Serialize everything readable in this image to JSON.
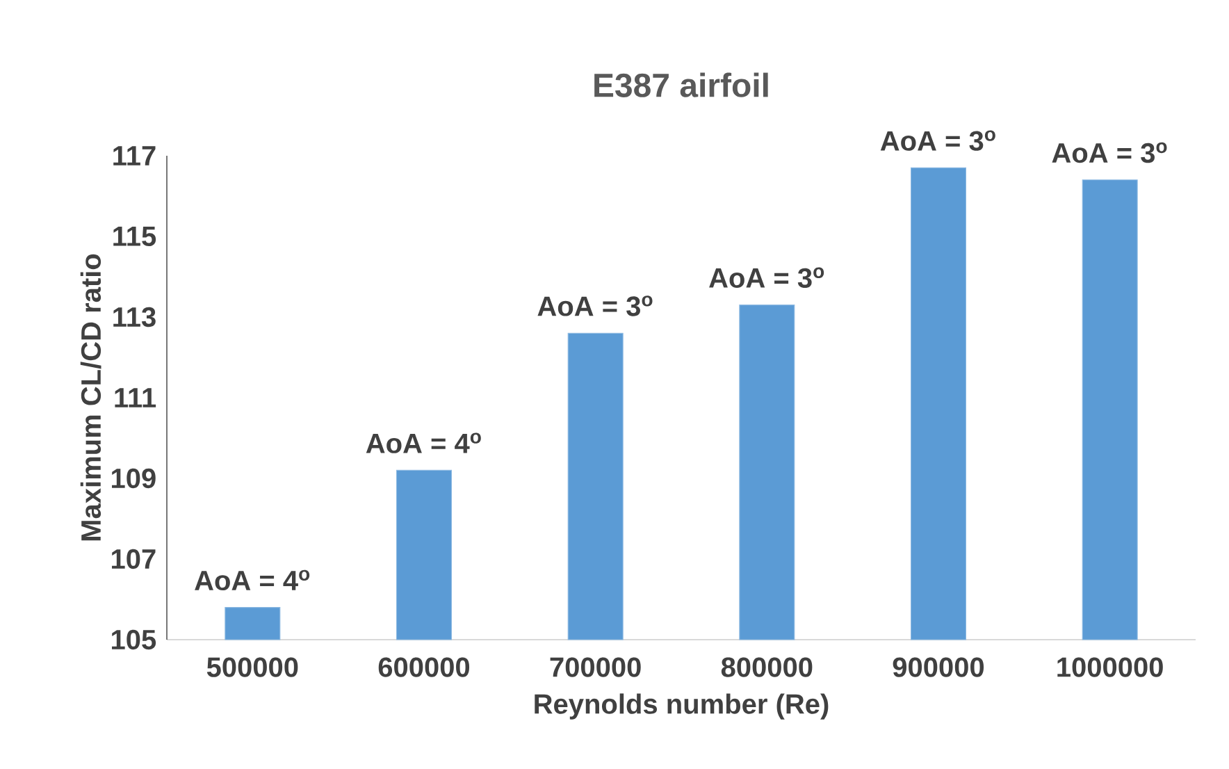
{
  "chart_data": {
    "type": "bar",
    "title": "E387 airfoil",
    "xlabel": "Reynolds number (Re)",
    "ylabel": "Maximum CL/CD ratio",
    "categories": [
      "500000",
      "600000",
      "700000",
      "800000",
      "900000",
      "1000000"
    ],
    "values": [
      105.8,
      109.2,
      112.6,
      113.3,
      116.7,
      116.4
    ],
    "color": "#5b9bd5",
    "ylim": [
      105,
      117
    ],
    "yticks": [
      105,
      107,
      109,
      111,
      113,
      115,
      117
    ],
    "annotations": [
      {
        "text": "AoA = 4$^{o}$",
        "x": "500000",
        "y": 105.8
      },
      {
        "text": "AoA = 4$^{o}$",
        "x": "600000",
        "y": 109.2
      },
      {
        "text": "AoA = 3$^{o}$",
        "x": "700000",
        "y": 112.6
      },
      {
        "text": "AoA = 3$^{o}$",
        "x": "800000",
        "y": 113.3
      },
      {
        "text": "AoA = 3$^{o}$",
        "x": "900000",
        "y": 116.7
      },
      {
        "text": "AoA = 3$^{o}$",
        "x": "1000000",
        "y": 116.4
      }
    ]
  }
}
